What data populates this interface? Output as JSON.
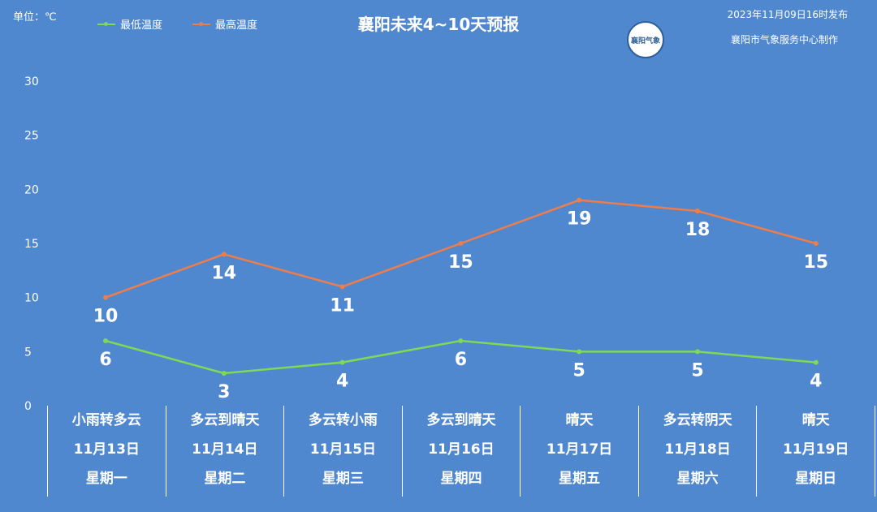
{
  "header": {
    "unit_label": "单位：℃",
    "title": "襄阳未来4~10天预报",
    "publish_time": "2023年11月09日16时发布",
    "maker": "襄阳市气象服务中心制作",
    "logo_text": "襄阳气象"
  },
  "legend": [
    {
      "name": "最低温度",
      "color": "#7ed957"
    },
    {
      "name": "最高温度",
      "color": "#ee7d4a"
    }
  ],
  "chart_data": {
    "type": "line",
    "categories": [
      "11月13日",
      "11月14日",
      "11月15日",
      "11月16日",
      "11月17日",
      "11月18日",
      "11月19日"
    ],
    "series": [
      {
        "name": "最低温度",
        "values": [
          6,
          3,
          4,
          6,
          5,
          5,
          4
        ],
        "color": "#7ed957"
      },
      {
        "name": "最高温度",
        "values": [
          10,
          14,
          11,
          15,
          19,
          18,
          15
        ],
        "color": "#ee7d4a"
      }
    ],
    "ylim": [
      0,
      30
    ],
    "yticks": [
      0,
      5,
      10,
      15,
      20,
      25,
      30
    ],
    "grid": false,
    "legend_position": "top-left"
  },
  "days": [
    {
      "weather": "小雨转多云",
      "date": "11月13日",
      "weekday": "星期一"
    },
    {
      "weather": "多云到晴天",
      "date": "11月14日",
      "weekday": "星期二"
    },
    {
      "weather": "多云转小雨",
      "date": "11月15日",
      "weekday": "星期三"
    },
    {
      "weather": "多云到晴天",
      "date": "11月16日",
      "weekday": "星期四"
    },
    {
      "weather": "晴天",
      "date": "11月17日",
      "weekday": "星期五"
    },
    {
      "weather": "多云转阴天",
      "date": "11月18日",
      "weekday": "星期六"
    },
    {
      "weather": "晴天",
      "date": "11月19日",
      "weekday": "星期日"
    }
  ]
}
